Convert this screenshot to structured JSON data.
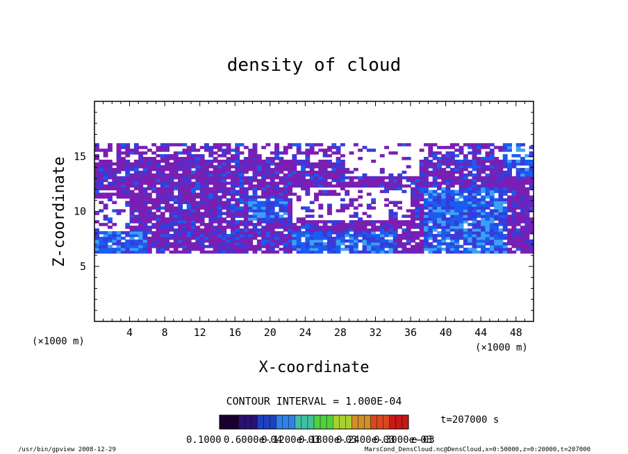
{
  "chart_data": {
    "type": "heatmap",
    "title": "density of cloud",
    "xlabel": "X-coordinate",
    "ylabel": "Z-coordinate",
    "x_unit": "(×1000 m)",
    "y_unit": "(×1000 m)",
    "xlim": [
      0,
      50
    ],
    "ylim": [
      0,
      20
    ],
    "x_ticks": [
      4,
      8,
      12,
      16,
      20,
      24,
      28,
      32,
      36,
      40,
      44,
      48
    ],
    "y_ticks": [
      5,
      10,
      15
    ],
    "contour_interval": "CONTOUR INTERVAL = 1.000E-04",
    "time_label": "t=207000 s",
    "colorbar_labels": [
      "0.1000",
      "0.6000e-04",
      "0.1200e-03",
      "0.1800e-03",
      "0.2400e-03",
      "0.3000e-03"
    ],
    "colorbar_tail": "e-03",
    "cloud_band_z_range": [
      6.2,
      16.2
    ],
    "colors": {
      "background": "#ffffff",
      "level_low": "#7a1fb3",
      "level_mid": "#3a3ad8",
      "level_high": "#1a5cf0",
      "level_peak": "#3ca0f5"
    }
  },
  "footer": {
    "left": "/usr/bin/gpview   2008-12-29",
    "right": "MarsCond_DensCloud.nc@DensCloud,x=0:50000,z=0:20000,t=207000"
  }
}
